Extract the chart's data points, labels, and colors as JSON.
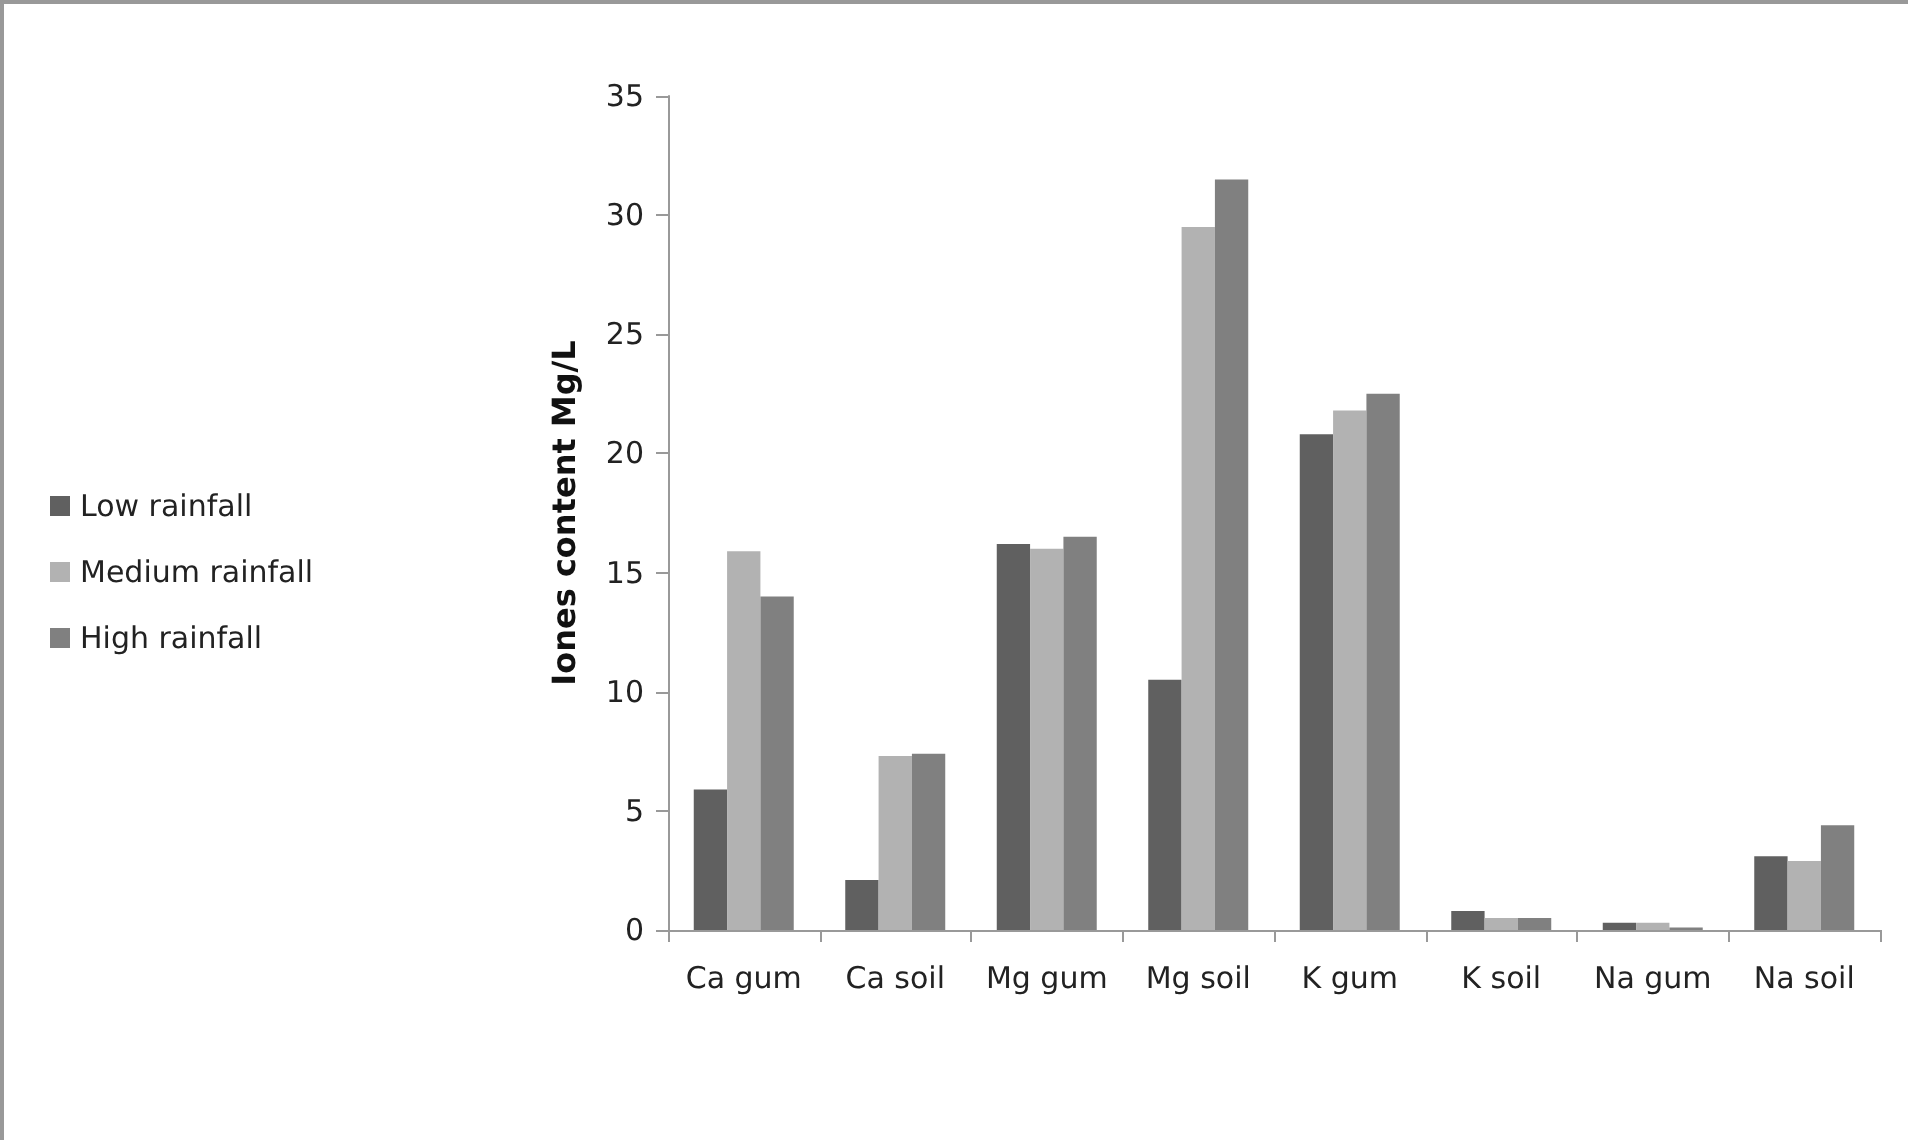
{
  "chart_data": {
    "type": "bar",
    "ylabel": "Iones content Mg/L",
    "categories": [
      "Ca gum",
      "Ca soil",
      "Mg gum",
      "Mg soil",
      "K gum",
      "K soil",
      "Na gum",
      "Na soil"
    ],
    "series": [
      {
        "name": "Low rainfall",
        "color": "#606060",
        "values": [
          5.9,
          2.1,
          16.2,
          10.5,
          20.8,
          0.8,
          0.3,
          3.1
        ]
      },
      {
        "name": "Medium rainfall",
        "color": "#b2b2b2",
        "values": [
          15.9,
          7.3,
          16.0,
          29.5,
          21.8,
          0.5,
          0.3,
          2.9
        ]
      },
      {
        "name": "High rainfall",
        "color": "#808080",
        "values": [
          14.0,
          7.4,
          16.5,
          31.5,
          22.5,
          0.5,
          0.1,
          4.4
        ]
      }
    ],
    "ylim": [
      0,
      35
    ],
    "yticks": [
      0,
      5,
      10,
      15,
      20,
      25,
      30,
      35
    ],
    "grid": false,
    "legend": "left"
  }
}
